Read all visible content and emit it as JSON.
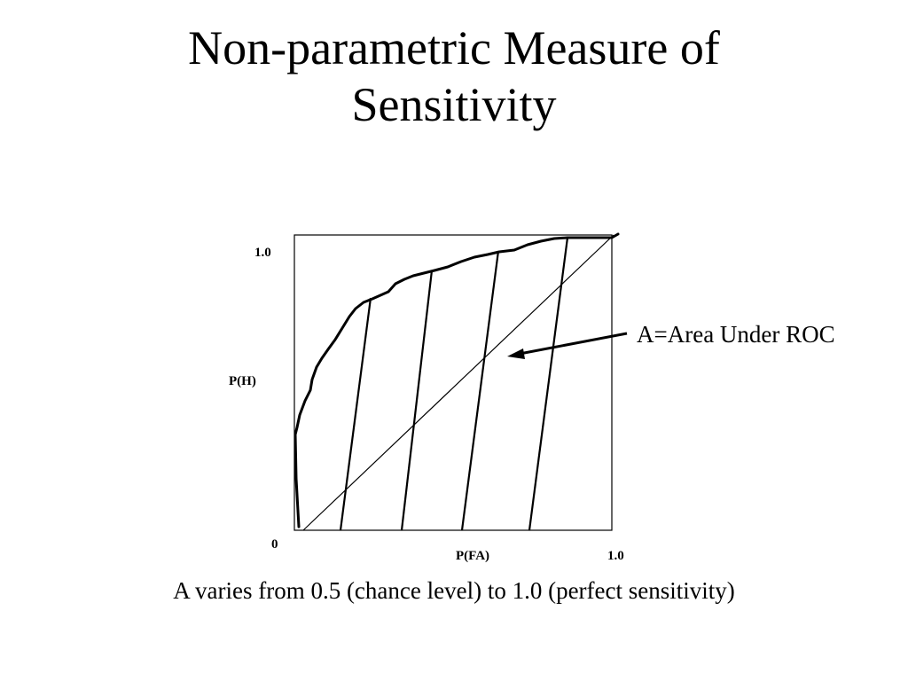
{
  "slide": {
    "title_line_1": "Non-parametric Measure of",
    "title_line_2": "Sensitivity",
    "caption": "A varies from 0.5 (chance level) to 1.0 (perfect sensitivity)"
  },
  "diagram": {
    "y_axis_label": "P(H)",
    "x_axis_label": "P(FA)",
    "y_top_tick": "1.0",
    "origin_tick": "0",
    "x_right_tick": "1.0",
    "annotation": "A=Area Under ROC"
  }
}
